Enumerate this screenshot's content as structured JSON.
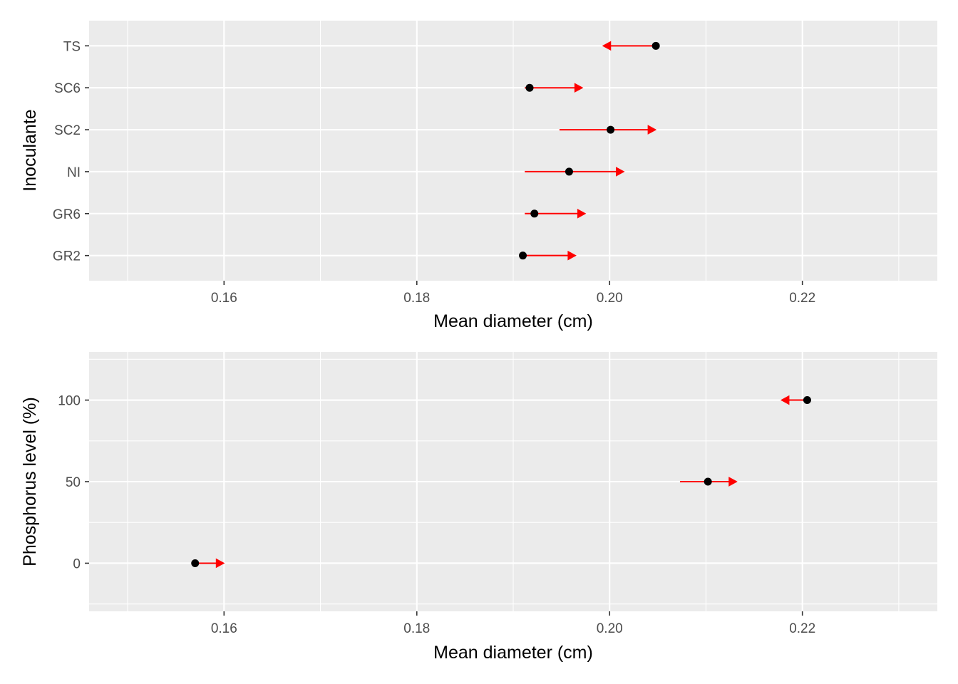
{
  "chart_data": [
    {
      "type": "scatter",
      "subtype": "dot-with-interval-arrows",
      "xlabel": "Mean diameter (cm)",
      "ylabel": "Inoculante",
      "xlim": [
        0.146,
        0.234
      ],
      "x_ticks": [
        0.16,
        0.18,
        0.2,
        0.22
      ],
      "x_tick_labels": [
        "0.16",
        "0.18",
        "0.20",
        "0.22"
      ],
      "y_axis": "categorical",
      "categories": [
        "GR2",
        "GR6",
        "NI",
        "SC2",
        "SC6",
        "TS"
      ],
      "points": [
        {
          "category": "GR2",
          "mean": 0.191,
          "arrow_from": 0.191,
          "arrow_to": 0.1965
        },
        {
          "category": "GR6",
          "mean": 0.1922,
          "arrow_from": 0.1912,
          "arrow_to": 0.1975
        },
        {
          "category": "NI",
          "mean": 0.1958,
          "arrow_from": 0.1912,
          "arrow_to": 0.2015
        },
        {
          "category": "SC2",
          "mean": 0.2001,
          "arrow_from": 0.1948,
          "arrow_to": 0.2048
        },
        {
          "category": "SC6",
          "mean": 0.1917,
          "arrow_from": 0.1912,
          "arrow_to": 0.1972
        },
        {
          "category": "TS",
          "mean": 0.2048,
          "arrow_from": 0.2048,
          "arrow_to": 0.1993
        }
      ],
      "grid": true,
      "background": "#ebebeb",
      "point_color": "#000000",
      "arrow_color": "#ff0000"
    },
    {
      "type": "scatter",
      "subtype": "dot-with-interval-arrows",
      "xlabel": "Mean diameter (cm)",
      "ylabel": "Phosphorus level (%)",
      "xlim": [
        0.146,
        0.234
      ],
      "x_ticks": [
        0.16,
        0.18,
        0.2,
        0.22
      ],
      "x_tick_labels": [
        "0.16",
        "0.18",
        "0.20",
        "0.22"
      ],
      "ylim": [
        -29.5,
        129.5
      ],
      "y_ticks": [
        0,
        50,
        100
      ],
      "y_tick_labels": [
        "0",
        "50",
        "100"
      ],
      "points": [
        {
          "y": 0,
          "mean": 0.157,
          "arrow_from": 0.157,
          "arrow_to": 0.16
        },
        {
          "y": 50,
          "mean": 0.2102,
          "arrow_from": 0.2073,
          "arrow_to": 0.2132
        },
        {
          "y": 100,
          "mean": 0.2205,
          "arrow_from": 0.2205,
          "arrow_to": 0.2178
        }
      ],
      "grid": true,
      "background": "#ebebeb",
      "point_color": "#000000",
      "arrow_color": "#ff0000"
    }
  ]
}
